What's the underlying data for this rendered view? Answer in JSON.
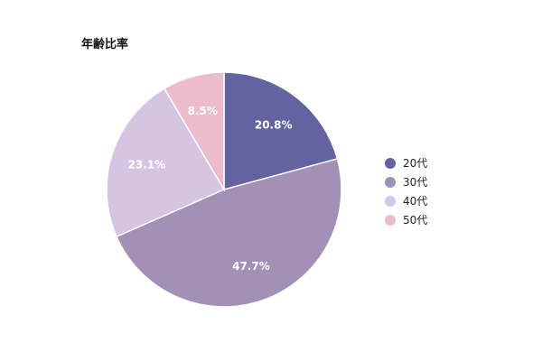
{
  "chart_data": {
    "type": "pie",
    "title": "年齢比率",
    "categories": [
      "20代",
      "30代",
      "40代",
      "50代"
    ],
    "values": [
      20.8,
      47.7,
      23.1,
      8.5
    ],
    "labels": [
      "20.8%",
      "47.7%",
      "23.1%",
      "8.5%"
    ],
    "colors": [
      "#6263a0",
      "#a290b7",
      "#d6c5e2",
      "#ecbccd"
    ],
    "legend_position": "right"
  }
}
